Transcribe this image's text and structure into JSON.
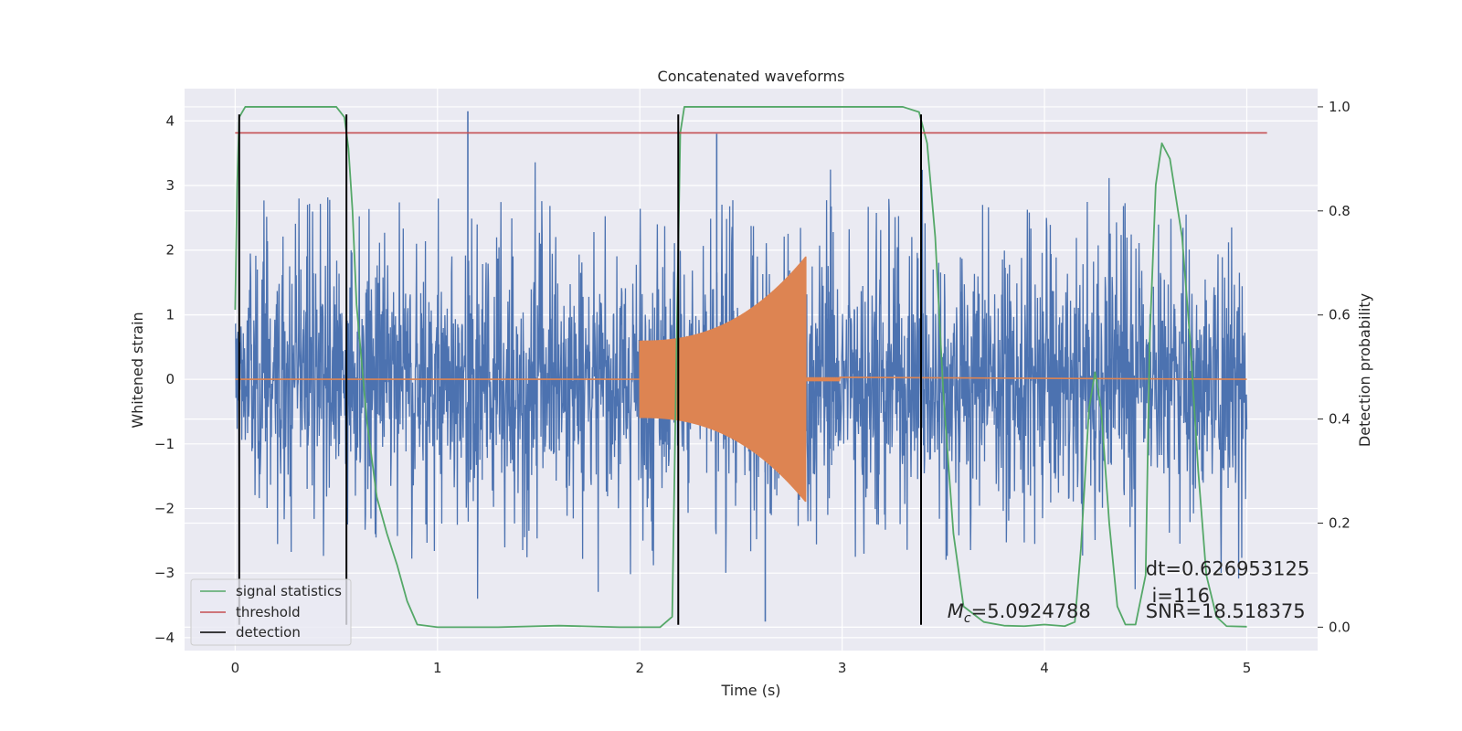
{
  "chart_data": {
    "type": "line",
    "title": "Concatenated waveforms",
    "xlabel": "Time (s)",
    "ylabel": "Whitened strain",
    "y2label": "Detection probability",
    "xlim": [
      -0.25,
      5.35
    ],
    "ylim": [
      -4.2,
      4.5
    ],
    "y2lim": [
      -0.045,
      1.035
    ],
    "xticks": [
      0,
      1,
      2,
      3,
      4,
      5
    ],
    "xtick_labels": [
      "0",
      "1",
      "2",
      "3",
      "4",
      "5"
    ],
    "yticks": [
      -4,
      -3,
      -2,
      -1,
      0,
      1,
      2,
      3,
      4
    ],
    "ytick_labels": [
      "−4",
      "−3",
      "−2",
      "−1",
      "0",
      "1",
      "2",
      "3",
      "4"
    ],
    "y2ticks": [
      0.0,
      0.2,
      0.4,
      0.6,
      0.8,
      1.0
    ],
    "y2tick_labels": [
      "0.0",
      "0.2",
      "0.4",
      "0.6",
      "0.8",
      "1.0"
    ],
    "grid": true,
    "legend_location": "lower-left",
    "legend": [
      "signal statistics",
      "threshold",
      "detection"
    ],
    "series": [
      {
        "name": "whitened strain",
        "color": "#4c72b0",
        "axis": "left",
        "noise_amplitude": 1.0,
        "x_range": [
          0,
          5
        ],
        "peaks": [
          [
            1.15,
            4.15
          ],
          [
            2.62,
            -3.75
          ],
          [
            2.38,
            3.8
          ]
        ]
      },
      {
        "name": "injected waveform",
        "color": "#dd8452",
        "axis": "left",
        "x_start": 2.0,
        "x_end": 2.82,
        "amplitude_start": 0.6,
        "amplitude_end": 1.9
      },
      {
        "name": "signal statistics",
        "color": "#55a868",
        "axis": "right",
        "x": [
          0.0,
          0.01,
          0.02,
          0.05,
          0.1,
          0.2,
          0.4,
          0.5,
          0.54,
          0.56,
          0.58,
          0.6,
          0.65,
          0.7,
          0.75,
          0.8,
          0.85,
          0.9,
          1.0,
          1.3,
          1.6,
          1.9,
          2.1,
          2.16,
          2.18,
          2.2,
          2.22,
          2.25,
          3.3,
          3.38,
          3.42,
          3.46,
          3.5,
          3.55,
          3.6,
          3.7,
          3.8,
          3.9,
          4.0,
          4.1,
          4.15,
          4.18,
          4.22,
          4.25,
          4.28,
          4.32,
          4.36,
          4.4,
          4.45,
          4.5,
          4.52,
          4.55,
          4.58,
          4.62,
          4.68,
          4.72,
          4.76,
          4.8,
          4.85,
          4.9,
          5.0
        ],
        "y": [
          0.61,
          0.85,
          0.98,
          1.0,
          1.0,
          1.0,
          1.0,
          1.0,
          0.98,
          0.92,
          0.8,
          0.62,
          0.4,
          0.25,
          0.18,
          0.12,
          0.05,
          0.005,
          0.0,
          0.0,
          0.003,
          0.0,
          0.0,
          0.02,
          0.5,
          0.95,
          1.0,
          1.0,
          1.0,
          0.99,
          0.93,
          0.75,
          0.45,
          0.18,
          0.04,
          0.01,
          0.003,
          0.002,
          0.005,
          0.002,
          0.01,
          0.15,
          0.42,
          0.49,
          0.42,
          0.2,
          0.04,
          0.005,
          0.005,
          0.1,
          0.55,
          0.85,
          0.93,
          0.9,
          0.75,
          0.55,
          0.3,
          0.1,
          0.02,
          0.002,
          0.001
        ]
      },
      {
        "name": "threshold",
        "color": "#c44e52",
        "axis": "right",
        "x": [
          0.0,
          5.1
        ],
        "y": [
          0.95,
          0.95
        ]
      },
      {
        "name": "detection",
        "color": "#000000",
        "axis": "left",
        "type": "vlines",
        "x": [
          0.02,
          0.55,
          2.19,
          3.39
        ],
        "ymin": -3.8,
        "ymax": 4.1
      }
    ],
    "annotations": [
      {
        "id": "mc",
        "symbol": "M",
        "subscript": "c",
        "value": "=5.0924788",
        "x": 3.52,
        "y_prob": 0.0178
      },
      {
        "id": "dt",
        "text": "dt=0.626953125",
        "x": 4.5,
        "y_prob": 0.1
      },
      {
        "id": "i",
        "text": " i=116",
        "x": 4.5,
        "y_prob": 0.0485
      },
      {
        "id": "snr",
        "text": "SNR=18.518375",
        "x": 4.5,
        "y_prob": 0.0185
      }
    ]
  }
}
